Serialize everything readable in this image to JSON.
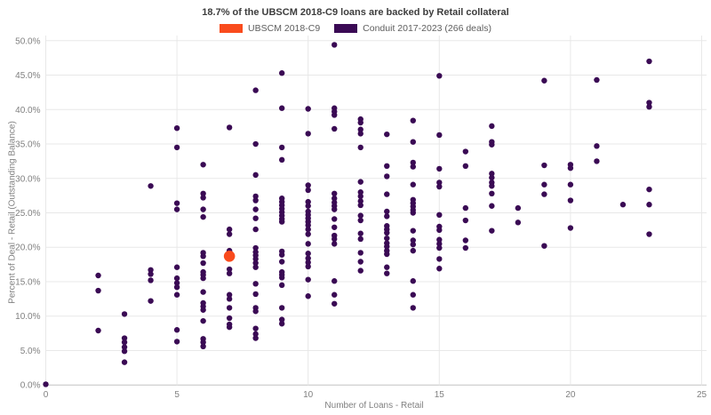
{
  "chart_data": {
    "type": "scatter",
    "title": "18.7% of the UBSCM 2018-C9 loans are backed by Retail collateral",
    "xlabel": "Number of Loans - Retail",
    "ylabel": "Percent of Deal - Retail (Outstanding Balance)",
    "xlim": [
      0,
      25
    ],
    "ylim": [
      0,
      50
    ],
    "grid": true,
    "legend_position": "top-center",
    "x_ticks": {
      "values": [
        0,
        5,
        10,
        15,
        20,
        25
      ],
      "labels": [
        "0",
        "5",
        "10",
        "15",
        "20",
        "25"
      ]
    },
    "y_ticks": {
      "values": [
        0,
        5,
        10,
        15,
        20,
        25,
        30,
        35,
        40,
        45,
        50
      ],
      "labels": [
        "0.0%",
        "5.0%",
        "10.0%",
        "15.0%",
        "20.0%",
        "25.0%",
        "30.0%",
        "35.0%",
        "40.0%",
        "45.0%",
        "50.0%"
      ]
    },
    "style": {
      "grid_color": "#e8e8e8",
      "axis_color": "#c4c4c4",
      "tick_text_color": "#808080"
    },
    "series": [
      {
        "name": "UBSCM 2018-C9",
        "color": "#f94b1d",
        "marker_radius": 6.3,
        "points": [
          [
            7,
            18.7
          ]
        ]
      },
      {
        "name": "Conduit 2017-2023 (266 deals)",
        "color": "#3a0a54",
        "marker_radius": 3.2,
        "points": [
          [
            0,
            0.1
          ],
          [
            2,
            15.9
          ],
          [
            2,
            13.7
          ],
          [
            2,
            7.9
          ],
          [
            3,
            10.3
          ],
          [
            3,
            6.8
          ],
          [
            3,
            6.2
          ],
          [
            3,
            5.5
          ],
          [
            3,
            4.9
          ],
          [
            3,
            3.3
          ],
          [
            4,
            28.9
          ],
          [
            4,
            16.7
          ],
          [
            4,
            16.1
          ],
          [
            4,
            15.2
          ],
          [
            4,
            12.2
          ],
          [
            5,
            37.3
          ],
          [
            5,
            34.5
          ],
          [
            5,
            26.4
          ],
          [
            5,
            25.5
          ],
          [
            5,
            17.1
          ],
          [
            5,
            15.5
          ],
          [
            5,
            14.8
          ],
          [
            5,
            14.2
          ],
          [
            5,
            13.1
          ],
          [
            5,
            8.0
          ],
          [
            5,
            6.3
          ],
          [
            6,
            32.0
          ],
          [
            6,
            27.8
          ],
          [
            6,
            27.2
          ],
          [
            6,
            25.5
          ],
          [
            6,
            24.4
          ],
          [
            6,
            19.2
          ],
          [
            6,
            18.7
          ],
          [
            6,
            17.7
          ],
          [
            6,
            16.4
          ],
          [
            6,
            16.0
          ],
          [
            6,
            15.5
          ],
          [
            6,
            13.5
          ],
          [
            6,
            11.9
          ],
          [
            6,
            11.4
          ],
          [
            6,
            10.9
          ],
          [
            6,
            9.3
          ],
          [
            6,
            6.7
          ],
          [
            6,
            6.2
          ],
          [
            6,
            5.6
          ],
          [
            7,
            37.4
          ],
          [
            7,
            22.6
          ],
          [
            7,
            21.9
          ],
          [
            7,
            19.5
          ],
          [
            7,
            16.8
          ],
          [
            7,
            16.2
          ],
          [
            7,
            13.1
          ],
          [
            7,
            12.5
          ],
          [
            7,
            11.2
          ],
          [
            7,
            9.7
          ],
          [
            7,
            8.8
          ],
          [
            7,
            8.4
          ],
          [
            8,
            42.8
          ],
          [
            8,
            35.0
          ],
          [
            8,
            30.5
          ],
          [
            8,
            27.4
          ],
          [
            8,
            26.8
          ],
          [
            8,
            25.5
          ],
          [
            8,
            24.2
          ],
          [
            8,
            22.6
          ],
          [
            8,
            19.9
          ],
          [
            8,
            19.3
          ],
          [
            8,
            18.8
          ],
          [
            8,
            18.3
          ],
          [
            8,
            17.7
          ],
          [
            8,
            17.1
          ],
          [
            8,
            14.7
          ],
          [
            8,
            13.2
          ],
          [
            8,
            11.2
          ],
          [
            8,
            10.7
          ],
          [
            8,
            8.2
          ],
          [
            8,
            7.4
          ],
          [
            8,
            6.8
          ],
          [
            9,
            45.3
          ],
          [
            9,
            40.2
          ],
          [
            9,
            34.5
          ],
          [
            9,
            32.7
          ],
          [
            9,
            27.1
          ],
          [
            9,
            26.6
          ],
          [
            9,
            26.1
          ],
          [
            9,
            25.6
          ],
          [
            9,
            25.1
          ],
          [
            9,
            24.6
          ],
          [
            9,
            24.1
          ],
          [
            9,
            23.7
          ],
          [
            9,
            19.4
          ],
          [
            9,
            18.9
          ],
          [
            9,
            17.9
          ],
          [
            9,
            16.4
          ],
          [
            9,
            16.0
          ],
          [
            9,
            15.6
          ],
          [
            9,
            14.5
          ],
          [
            9,
            11.2
          ],
          [
            9,
            9.5
          ],
          [
            9,
            8.9
          ],
          [
            10,
            40.1
          ],
          [
            10,
            36.5
          ],
          [
            10,
            29.0
          ],
          [
            10,
            28.3
          ],
          [
            10,
            26.6
          ],
          [
            10,
            26.0
          ],
          [
            10,
            25.2
          ],
          [
            10,
            24.7
          ],
          [
            10,
            24.2
          ],
          [
            10,
            23.7
          ],
          [
            10,
            23.2
          ],
          [
            10,
            22.6
          ],
          [
            10,
            21.9
          ],
          [
            10,
            20.5
          ],
          [
            10,
            19.1
          ],
          [
            10,
            18.4
          ],
          [
            10,
            17.8
          ],
          [
            10,
            17.2
          ],
          [
            10,
            15.3
          ],
          [
            10,
            12.9
          ],
          [
            11,
            49.4
          ],
          [
            11,
            40.2
          ],
          [
            11,
            39.7
          ],
          [
            11,
            39.2
          ],
          [
            11,
            37.2
          ],
          [
            11,
            27.8
          ],
          [
            11,
            27.1
          ],
          [
            11,
            26.5
          ],
          [
            11,
            26.0
          ],
          [
            11,
            25.5
          ],
          [
            11,
            24.1
          ],
          [
            11,
            22.9
          ],
          [
            11,
            21.7
          ],
          [
            11,
            21.2
          ],
          [
            11,
            20.5
          ],
          [
            11,
            15.1
          ],
          [
            11,
            13.1
          ],
          [
            11,
            11.8
          ],
          [
            12,
            38.6
          ],
          [
            12,
            38.1
          ],
          [
            12,
            37.1
          ],
          [
            12,
            36.5
          ],
          [
            12,
            34.5
          ],
          [
            12,
            29.5
          ],
          [
            12,
            28.0
          ],
          [
            12,
            27.4
          ],
          [
            12,
            26.7
          ],
          [
            12,
            26.1
          ],
          [
            12,
            24.6
          ],
          [
            12,
            23.9
          ],
          [
            12,
            22.0
          ],
          [
            12,
            21.2
          ],
          [
            12,
            19.2
          ],
          [
            12,
            17.9
          ],
          [
            12,
            16.6
          ],
          [
            13,
            36.4
          ],
          [
            13,
            31.8
          ],
          [
            13,
            30.3
          ],
          [
            13,
            27.7
          ],
          [
            13,
            25.2
          ],
          [
            13,
            24.5
          ],
          [
            13,
            23.1
          ],
          [
            13,
            22.6
          ],
          [
            13,
            22.1
          ],
          [
            13,
            21.3
          ],
          [
            13,
            20.6
          ],
          [
            13,
            20.1
          ],
          [
            13,
            19.5
          ],
          [
            13,
            19.0
          ],
          [
            13,
            17.1
          ],
          [
            13,
            16.2
          ],
          [
            14,
            38.4
          ],
          [
            14,
            35.3
          ],
          [
            14,
            32.3
          ],
          [
            14,
            31.7
          ],
          [
            14,
            29.1
          ],
          [
            14,
            26.9
          ],
          [
            14,
            26.4
          ],
          [
            14,
            25.9
          ],
          [
            14,
            25.4
          ],
          [
            14,
            25.0
          ],
          [
            14,
            22.4
          ],
          [
            14,
            21.0
          ],
          [
            14,
            20.4
          ],
          [
            14,
            19.5
          ],
          [
            14,
            15.1
          ],
          [
            14,
            13.1
          ],
          [
            14,
            11.2
          ],
          [
            15,
            44.9
          ],
          [
            15,
            36.3
          ],
          [
            15,
            31.4
          ],
          [
            15,
            29.4
          ],
          [
            15,
            28.8
          ],
          [
            15,
            24.7
          ],
          [
            15,
            23.0
          ],
          [
            15,
            22.5
          ],
          [
            15,
            21.1
          ],
          [
            15,
            20.5
          ],
          [
            15,
            19.9
          ],
          [
            15,
            18.3
          ],
          [
            15,
            16.9
          ],
          [
            16,
            33.9
          ],
          [
            16,
            31.8
          ],
          [
            16,
            25.7
          ],
          [
            16,
            23.9
          ],
          [
            16,
            21.0
          ],
          [
            16,
            19.9
          ],
          [
            17,
            37.6
          ],
          [
            17,
            35.3
          ],
          [
            17,
            34.9
          ],
          [
            17,
            30.7
          ],
          [
            17,
            30.1
          ],
          [
            17,
            29.4
          ],
          [
            17,
            28.9
          ],
          [
            17,
            27.8
          ],
          [
            17,
            26.0
          ],
          [
            17,
            22.4
          ],
          [
            18,
            25.7
          ],
          [
            18,
            23.6
          ],
          [
            19,
            44.2
          ],
          [
            19,
            31.9
          ],
          [
            19,
            29.1
          ],
          [
            19,
            27.7
          ],
          [
            19,
            20.2
          ],
          [
            20,
            32.0
          ],
          [
            20,
            31.5
          ],
          [
            20,
            29.1
          ],
          [
            20,
            26.8
          ],
          [
            20,
            22.8
          ],
          [
            21,
            44.3
          ],
          [
            21,
            34.7
          ],
          [
            21,
            32.5
          ],
          [
            22,
            26.2
          ],
          [
            23,
            47.0
          ],
          [
            23,
            41.0
          ],
          [
            23,
            40.4
          ],
          [
            23,
            28.4
          ],
          [
            23,
            26.2
          ],
          [
            23,
            21.9
          ]
        ]
      }
    ]
  }
}
